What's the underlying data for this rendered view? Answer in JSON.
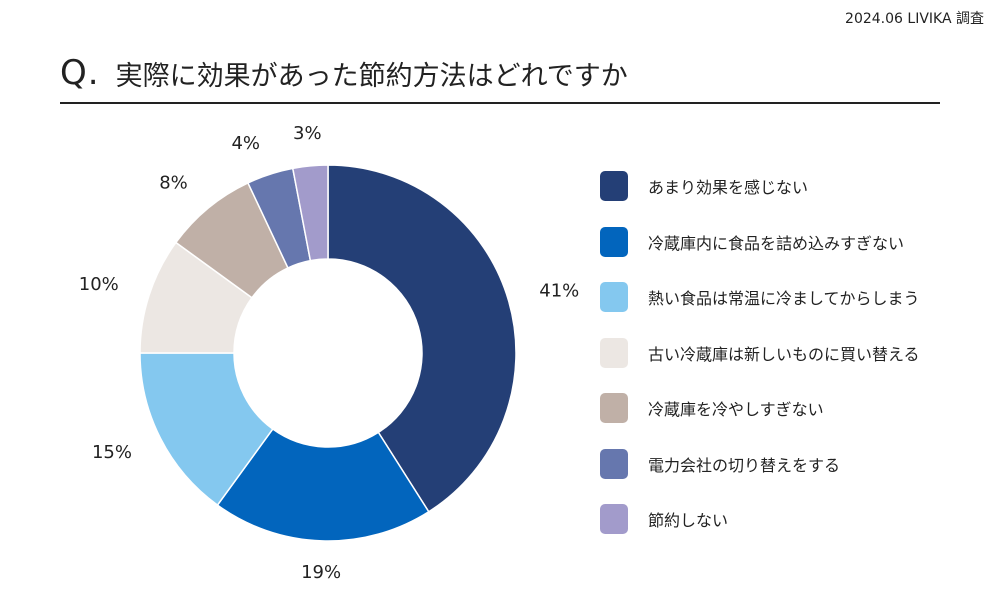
{
  "source": "2024.06 LIVIKA 調査",
  "header": {
    "q_mark": "Q.",
    "question": "実際に効果があった節約方法はどれですか"
  },
  "chart_data": {
    "type": "pie",
    "title": "実際に効果があった節約方法はどれですか",
    "categories": [
      "あまり効果を感じない",
      "冷蔵庫内に食品を詰め込みすぎない",
      "熱い食品は常温に冷ましてからしまう",
      "古い冷蔵庫は新しいものに買い替える",
      "冷蔵庫を冷やしすぎない",
      "電力会社の切り替えをする",
      "節約しない"
    ],
    "values": [
      41,
      19,
      15,
      10,
      8,
      4,
      3
    ],
    "labels": [
      "41%",
      "19%",
      "15%",
      "10%",
      "8%",
      "4%",
      "3%"
    ],
    "colors": [
      "#243F76",
      "#0265BD",
      "#84C8EF",
      "#ECE7E3",
      "#C0B0A7",
      "#6677AE",
      "#A29BCB"
    ],
    "donut": true,
    "legend_position": "right"
  }
}
